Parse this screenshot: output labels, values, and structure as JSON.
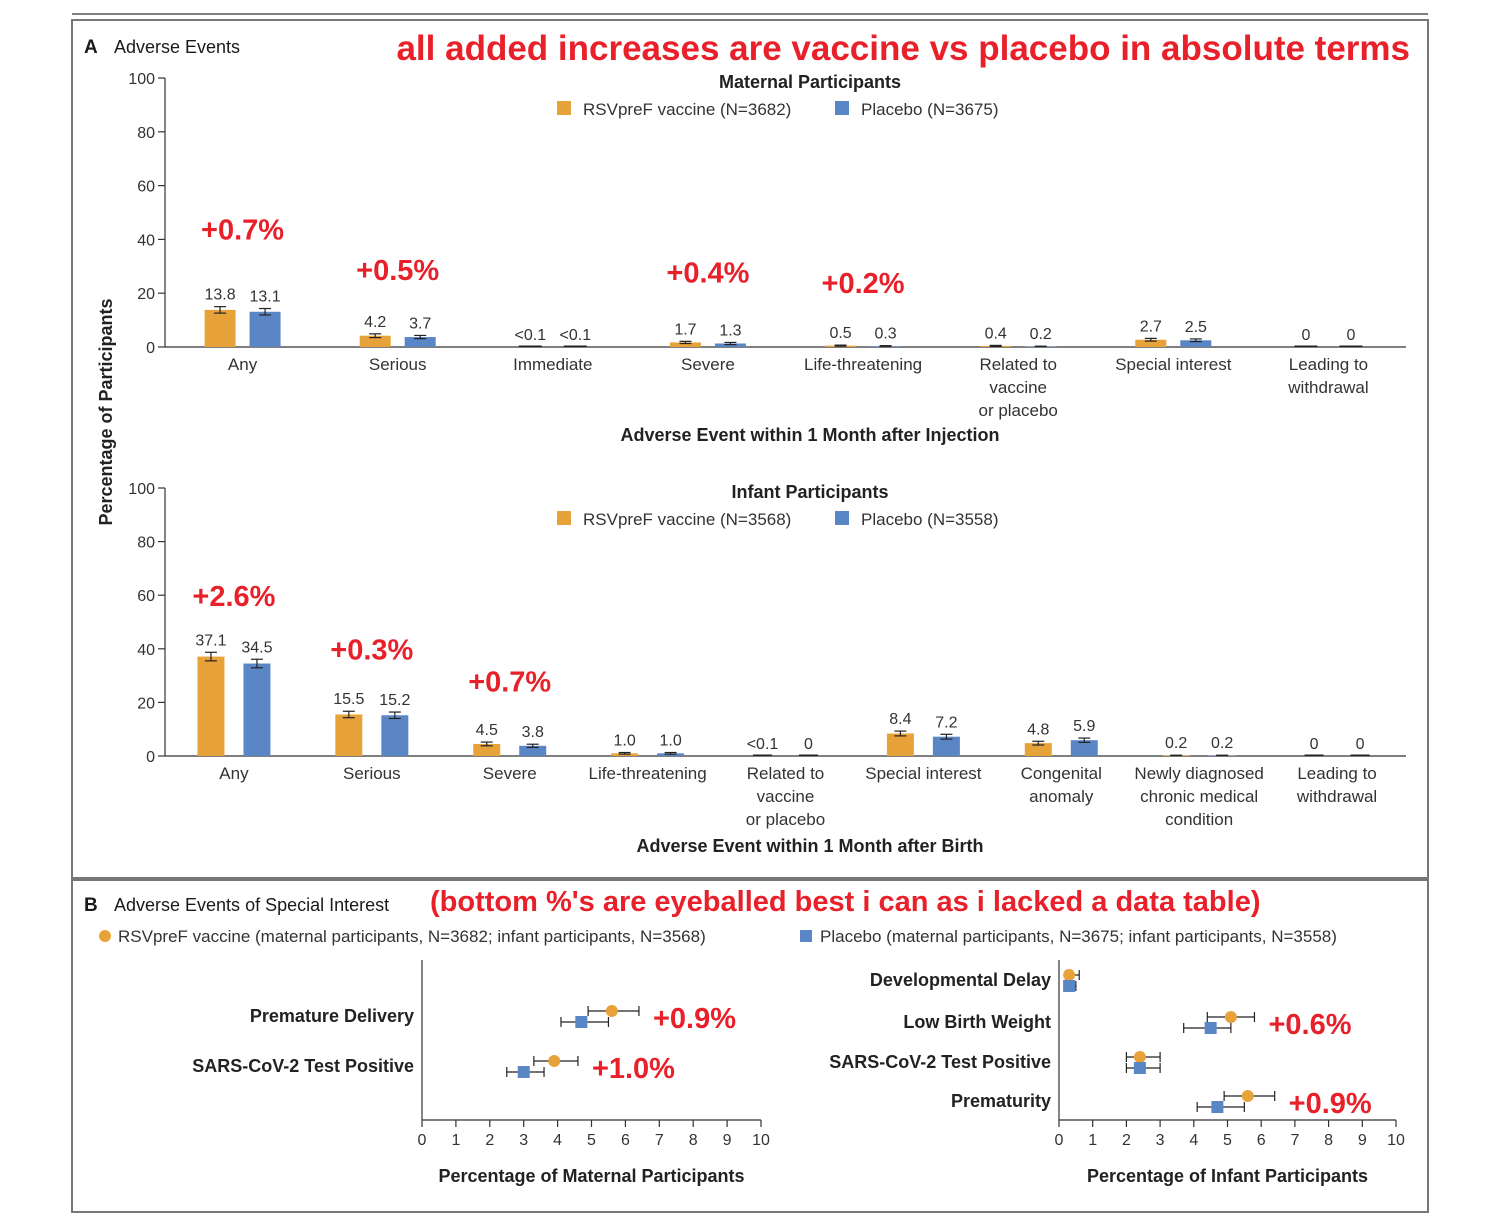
{
  "panel_a": {
    "letter": "A",
    "title": "Adverse Events",
    "banner": "all added increases are vaccine vs placebo in absolute terms",
    "ylabel": "Percentage of Participants"
  },
  "panel_b": {
    "letter": "B",
    "title": "Adverse Events of Special Interest",
    "banner": "(bottom %'s are eyeballed best i can as i lacked a data table)",
    "legend_vaccine": "RSVpreF vaccine (maternal participants, N=3682; infant participants, N=3568)",
    "legend_placebo": "Placebo (maternal participants, N=3675; infant participants, N=3558)"
  },
  "colors": {
    "vaccine": "#e8a23a",
    "placebo": "#5b86c6",
    "annotation": "#e8202a",
    "axis": "#333333"
  },
  "chart_data": [
    {
      "id": "maternal",
      "type": "bar",
      "title": "Maternal Participants",
      "xlabel": "Adverse Event within 1 Month after Injection",
      "ylabel": "Percentage of Participants",
      "ylim": [
        0,
        100
      ],
      "yticks": [
        "0",
        "20",
        "40",
        "60",
        "80",
        "100"
      ],
      "legend": [
        "RSVpreF vaccine (N=3682)",
        "Placebo (N=3675)"
      ],
      "categories": [
        [
          "Any"
        ],
        [
          "Serious"
        ],
        [
          "Immediate"
        ],
        [
          "Severe"
        ],
        [
          "Life-threatening"
        ],
        [
          "Related to",
          "vaccine",
          "or placebo"
        ],
        [
          "Special interest"
        ],
        [
          "Leading to",
          "withdrawal"
        ]
      ],
      "series": [
        {
          "name": "RSVpreF vaccine",
          "values": [
            13.8,
            4.2,
            0.05,
            1.7,
            0.5,
            0.4,
            2.7,
            0
          ],
          "labels": [
            "13.8",
            "4.2",
            "<0.1",
            "1.7",
            "0.5",
            "0.4",
            "2.7",
            "0"
          ],
          "err": [
            1.2,
            0.7,
            0,
            0.4,
            0.2,
            0.2,
            0.5,
            0
          ]
        },
        {
          "name": "Placebo",
          "values": [
            13.1,
            3.7,
            0.05,
            1.3,
            0.3,
            0.2,
            2.5,
            0
          ],
          "labels": [
            "13.1",
            "3.7",
            "<0.1",
            "1.3",
            "0.3",
            "0.2",
            "2.5",
            "0"
          ],
          "err": [
            1.2,
            0.6,
            0,
            0.4,
            0.2,
            0.1,
            0.5,
            0
          ]
        }
      ],
      "annotations": [
        {
          "category": 0,
          "text": "+0.7%",
          "level": 40
        },
        {
          "category": 1,
          "text": "+0.5%",
          "level": 25
        },
        {
          "category": 3,
          "text": "+0.4%",
          "level": 24
        },
        {
          "category": 4,
          "text": "+0.2%",
          "level": 20
        }
      ]
    },
    {
      "id": "infant",
      "type": "bar",
      "title": "Infant Participants",
      "xlabel": "Adverse Event within 1 Month after Birth",
      "ylabel": "Percentage of Participants",
      "ylim": [
        0,
        100
      ],
      "yticks": [
        "0",
        "20",
        "40",
        "60",
        "80",
        "100"
      ],
      "legend": [
        "RSVpreF vaccine (N=3568)",
        "Placebo (N=3558)"
      ],
      "categories": [
        [
          "Any"
        ],
        [
          "Serious"
        ],
        [
          "Severe"
        ],
        [
          "Life-threatening"
        ],
        [
          "Related to",
          "vaccine",
          "or placebo"
        ],
        [
          "Special interest"
        ],
        [
          "Congenital",
          "anomaly"
        ],
        [
          "Newly diagnosed",
          "chronic medical",
          "condition"
        ],
        [
          "Leading to",
          "withdrawal"
        ]
      ],
      "series": [
        {
          "name": "RSVpreF vaccine",
          "values": [
            37.1,
            15.5,
            4.5,
            1.0,
            0.05,
            8.4,
            4.8,
            0.2,
            0
          ],
          "labels": [
            "37.1",
            "15.5",
            "4.5",
            "1.0",
            "<0.1",
            "8.4",
            "4.8",
            "0.2",
            "0"
          ],
          "err": [
            1.6,
            1.2,
            0.7,
            0.3,
            0,
            0.9,
            0.7,
            0.1,
            0
          ]
        },
        {
          "name": "Placebo",
          "values": [
            34.5,
            15.2,
            3.8,
            1.0,
            0,
            7.2,
            5.9,
            0.2,
            0
          ],
          "labels": [
            "34.5",
            "15.2",
            "3.8",
            "1.0",
            "0",
            "7.2",
            "5.9",
            "0.2",
            "0"
          ],
          "err": [
            1.6,
            1.2,
            0.6,
            0.3,
            0,
            0.9,
            0.8,
            0.1,
            0
          ]
        }
      ],
      "annotations": [
        {
          "category": 0,
          "text": "+2.6%",
          "level": 56
        },
        {
          "category": 1,
          "text": "+0.3%",
          "level": 36
        },
        {
          "category": 2,
          "text": "+0.7%",
          "level": 24
        }
      ]
    },
    {
      "id": "maternal-special",
      "type": "scatter",
      "title": "",
      "xlabel": "Percentage of Maternal Participants",
      "xlim": [
        0,
        10
      ],
      "xticks": [
        "0",
        "1",
        "2",
        "3",
        "4",
        "5",
        "6",
        "7",
        "8",
        "9",
        "10"
      ],
      "categories": [
        "Premature Delivery",
        "SARS-CoV-2 Test Positive"
      ],
      "series": [
        {
          "name": "RSVpreF vaccine",
          "values": [
            5.6,
            3.9
          ],
          "ci": [
            [
              4.9,
              6.4
            ],
            [
              3.3,
              4.6
            ]
          ]
        },
        {
          "name": "Placebo",
          "values": [
            4.7,
            3.0
          ],
          "ci": [
            [
              4.1,
              5.5
            ],
            [
              2.5,
              3.6
            ]
          ]
        }
      ],
      "annotations": [
        {
          "category": 0,
          "text": "+0.9%"
        },
        {
          "category": 1,
          "text": "+1.0%"
        }
      ]
    },
    {
      "id": "infant-special",
      "type": "scatter",
      "title": "",
      "xlabel": "Percentage of Infant Participants",
      "xlim": [
        0,
        10
      ],
      "xticks": [
        "0",
        "1",
        "2",
        "3",
        "4",
        "5",
        "6",
        "7",
        "8",
        "9",
        "10"
      ],
      "categories": [
        "Developmental Delay",
        "Low Birth Weight",
        "SARS-CoV-2 Test Positive",
        "Prematurity"
      ],
      "series": [
        {
          "name": "RSVpreF vaccine",
          "values": [
            0.3,
            5.1,
            2.4,
            5.6
          ],
          "ci": [
            [
              0.2,
              0.6
            ],
            [
              4.4,
              5.8
            ],
            [
              2.0,
              3.0
            ],
            [
              4.9,
              6.4
            ]
          ]
        },
        {
          "name": "Placebo",
          "values": [
            0.3,
            4.5,
            2.4,
            4.7
          ],
          "ci": [
            [
              0.2,
              0.5
            ],
            [
              3.7,
              5.1
            ],
            [
              2.0,
              3.0
            ],
            [
              4.1,
              5.5
            ]
          ]
        }
      ],
      "annotations": [
        {
          "category": 1,
          "text": "+0.6%"
        },
        {
          "category": 3,
          "text": "+0.9%"
        }
      ]
    }
  ]
}
